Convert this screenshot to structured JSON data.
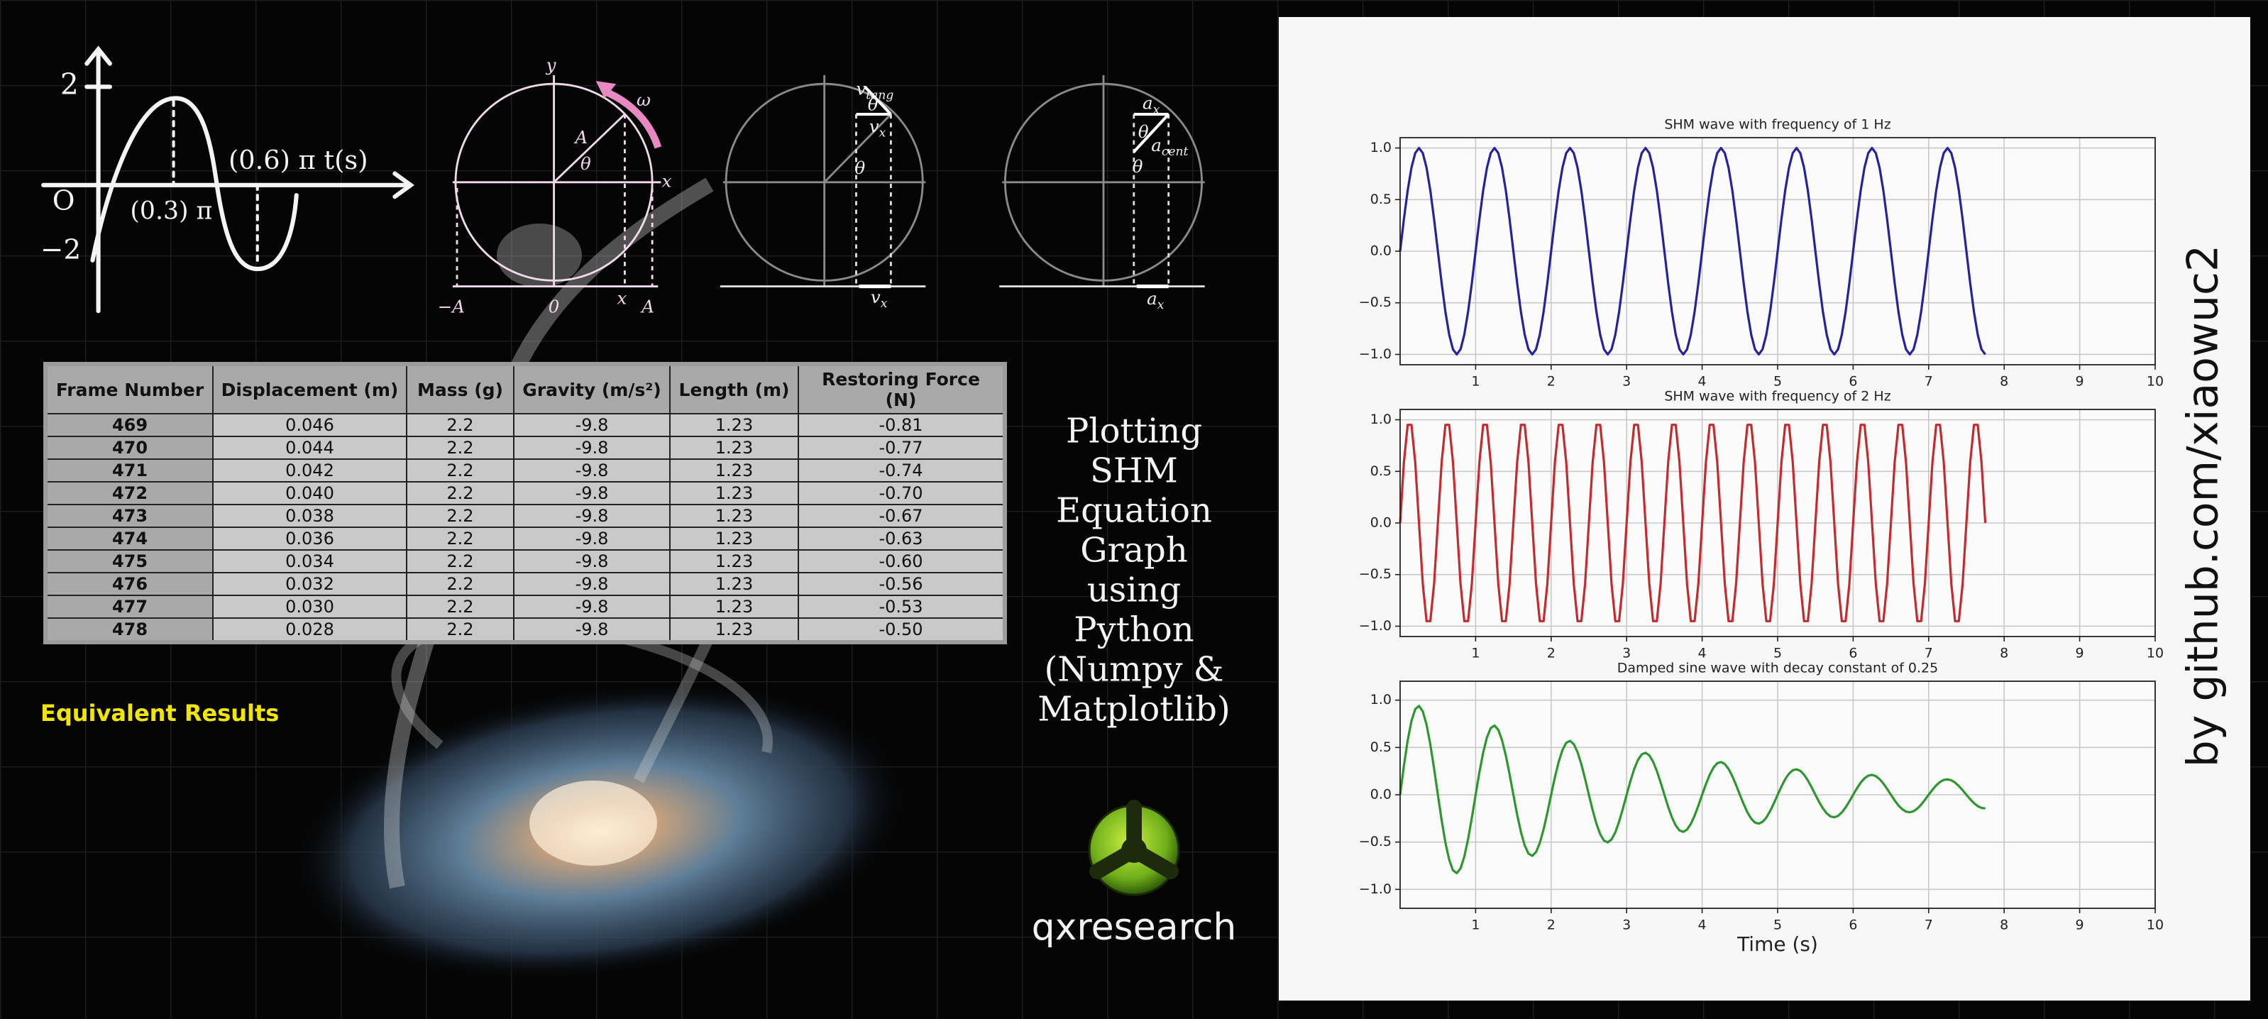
{
  "sine_sketch": {
    "labels": [
      "2",
      "O",
      "−2",
      "(0.3) π",
      "(0.6) π t(s)"
    ]
  },
  "circles": [
    {
      "labels": [
        "y",
        "x",
        "A",
        "θ",
        "ω",
        "−A",
        "0",
        "x",
        "A"
      ]
    },
    {
      "labels": [
        {
          "base": "v",
          "sub": "tang"
        },
        "θ",
        {
          "base": "v",
          "sub": "x"
        },
        "θ",
        {
          "base": "v",
          "sub": "x"
        }
      ]
    },
    {
      "labels": [
        {
          "base": "a",
          "sub": "x"
        },
        "θ",
        {
          "base": "a",
          "sub": "cent"
        },
        "θ",
        {
          "base": "a",
          "sub": "x"
        }
      ]
    }
  ],
  "table": {
    "headers": [
      "Frame Number",
      "Displacement (m)",
      "Mass (g)",
      "Gravity (m/s²)",
      "Length (m)",
      "Restoring Force (N)"
    ],
    "rows": [
      [
        "469",
        "0.046",
        "2.2",
        "-9.8",
        "1.23",
        "-0.81"
      ],
      [
        "470",
        "0.044",
        "2.2",
        "-9.8",
        "1.23",
        "-0.77"
      ],
      [
        "471",
        "0.042",
        "2.2",
        "-9.8",
        "1.23",
        "-0.74"
      ],
      [
        "472",
        "0.040",
        "2.2",
        "-9.8",
        "1.23",
        "-0.70"
      ],
      [
        "473",
        "0.038",
        "2.2",
        "-9.8",
        "1.23",
        "-0.67"
      ],
      [
        "474",
        "0.036",
        "2.2",
        "-9.8",
        "1.23",
        "-0.63"
      ],
      [
        "475",
        "0.034",
        "2.2",
        "-9.8",
        "1.23",
        "-0.60"
      ],
      [
        "476",
        "0.032",
        "2.2",
        "-9.8",
        "1.23",
        "-0.56"
      ],
      [
        "477",
        "0.030",
        "2.2",
        "-9.8",
        "1.23",
        "-0.53"
      ],
      [
        "478",
        "0.028",
        "2.2",
        "-9.8",
        "1.23",
        "-0.50"
      ]
    ]
  },
  "note": "Equivalent Results",
  "title_lines": [
    "Plotting",
    "SHM",
    "Equation",
    "Graph",
    "using",
    "Python",
    "(Numpy &",
    "Matplotlib)"
  ],
  "brand": "qxresearch",
  "credit": "by github.com/xiaowuc2",
  "chart_data": [
    {
      "type": "line",
      "title": "SHM wave with frequency of 1 Hz",
      "color": "#23239b",
      "grid": true,
      "xlim": [
        0,
        10
      ],
      "xticks": [
        1,
        2,
        3,
        4,
        5,
        6,
        7,
        8,
        9,
        10
      ],
      "ylim": [
        -1.1,
        1.1
      ],
      "yticks": [
        {
          "value": -1,
          "label": "−1.0"
        },
        {
          "value": -0.5,
          "label": "−0.5"
        },
        {
          "value": 0,
          "label": "0.0"
        },
        {
          "value": 0.5,
          "label": "0.5"
        },
        {
          "value": 1,
          "label": "1.0"
        }
      ],
      "x": [
        0,
        0.05,
        0.1,
        0.15,
        0.2,
        0.25,
        0.3,
        0.35,
        0.4,
        0.45,
        0.5,
        0.55,
        0.6,
        0.65,
        0.7,
        0.75,
        0.8,
        0.85,
        0.9,
        0.95,
        1,
        1.05,
        1.1,
        1.15,
        1.2,
        1.25,
        1.3,
        1.35,
        1.4,
        1.45,
        1.5,
        1.55,
        1.6,
        1.65,
        1.7,
        1.75,
        1.8,
        1.85,
        1.9,
        1.95,
        2,
        2.05,
        2.1,
        2.15,
        2.2,
        2.25,
        2.3,
        2.35,
        2.4,
        2.45,
        2.5,
        2.55,
        2.6,
        2.65,
        2.7,
        2.75,
        2.8,
        2.85,
        2.9,
        2.95,
        3,
        3.05,
        3.1,
        3.15,
        3.2,
        3.25,
        3.3,
        3.35,
        3.4,
        3.45,
        3.5,
        3.55,
        3.6,
        3.65,
        3.7,
        3.75,
        3.8,
        3.85,
        3.9,
        3.95,
        4,
        4.05,
        4.1,
        4.15,
        4.2,
        4.25,
        4.3,
        4.35,
        4.4,
        4.45,
        4.5,
        4.55,
        4.6,
        4.65,
        4.7,
        4.75,
        4.8,
        4.85,
        4.9,
        4.95,
        5,
        5.05,
        5.1,
        5.15,
        5.2,
        5.25,
        5.3,
        5.35,
        5.4,
        5.45,
        5.5,
        5.55,
        5.6,
        5.65,
        5.7,
        5.75,
        5.8,
        5.85,
        5.9,
        5.95,
        6,
        6.05,
        6.1,
        6.15,
        6.2,
        6.25,
        6.3,
        6.35,
        6.4,
        6.45,
        6.5,
        6.55,
        6.6,
        6.65,
        6.7,
        6.75,
        6.8,
        6.85,
        6.9,
        6.95,
        7,
        7.05,
        7.1,
        7.15,
        7.2,
        7.25,
        7.3,
        7.35,
        7.4,
        7.45,
        7.5,
        7.55,
        7.6,
        7.65,
        7.7,
        7.75
      ],
      "values": [
        0,
        0.309,
        0.588,
        0.809,
        0.951,
        1,
        0.951,
        0.809,
        0.588,
        0.309,
        0,
        -0.309,
        -0.588,
        -0.809,
        -0.951,
        -1,
        -0.951,
        -0.809,
        -0.588,
        -0.309,
        0,
        0.309,
        0.588,
        0.809,
        0.951,
        1,
        0.951,
        0.809,
        0.588,
        0.309,
        0,
        -0.309,
        -0.588,
        -0.809,
        -0.951,
        -1,
        -0.951,
        -0.809,
        -0.588,
        -0.309,
        0,
        0.309,
        0.588,
        0.809,
        0.951,
        1,
        0.951,
        0.809,
        0.588,
        0.309,
        0,
        -0.309,
        -0.588,
        -0.809,
        -0.951,
        -1,
        -0.951,
        -0.809,
        -0.588,
        -0.309,
        0,
        0.309,
        0.588,
        0.809,
        0.951,
        1,
        0.951,
        0.809,
        0.588,
        0.309,
        0,
        -0.309,
        -0.588,
        -0.809,
        -0.951,
        -1,
        -0.951,
        -0.809,
        -0.588,
        -0.309,
        0,
        0.309,
        0.588,
        0.809,
        0.951,
        1,
        0.951,
        0.809,
        0.588,
        0.309,
        0,
        -0.309,
        -0.588,
        -0.809,
        -0.951,
        -1,
        -0.951,
        -0.809,
        -0.588,
        -0.309,
        0,
        0.309,
        0.588,
        0.809,
        0.951,
        1,
        0.951,
        0.809,
        0.588,
        0.309,
        0,
        -0.309,
        -0.588,
        -0.809,
        -0.951,
        -1,
        -0.951,
        -0.809,
        -0.588,
        -0.309,
        0,
        0.309,
        0.588,
        0.809,
        0.951,
        1,
        0.951,
        0.809,
        0.588,
        0.309,
        0,
        -0.309,
        -0.588,
        -0.809,
        -0.951,
        -1,
        -0.951,
        -0.809,
        -0.588,
        -0.309,
        0,
        0.309,
        0.588,
        0.809,
        0.951,
        1,
        0.951,
        0.809,
        0.588,
        0.309,
        0,
        -0.309,
        -0.588,
        -0.809,
        -0.951,
        -1
      ]
    },
    {
      "type": "line",
      "title": "SHM wave with frequency of 2 Hz",
      "color": "#c42a2e",
      "grid": true,
      "xlim": [
        0,
        10
      ],
      "xticks": [
        1,
        2,
        3,
        4,
        5,
        6,
        7,
        8,
        9,
        10
      ],
      "ylim": [
        -1.1,
        1.1
      ],
      "yticks": [
        {
          "value": -1,
          "label": "−1.0"
        },
        {
          "value": -0.5,
          "label": "−0.5"
        },
        {
          "value": 0,
          "label": "0.0"
        },
        {
          "value": 0.5,
          "label": "0.5"
        },
        {
          "value": 1,
          "label": "1.0"
        }
      ],
      "x": [
        0,
        0.05,
        0.1,
        0.15,
        0.2,
        0.25,
        0.3,
        0.35,
        0.4,
        0.45,
        0.5,
        0.55,
        0.6,
        0.65,
        0.7,
        0.75,
        0.8,
        0.85,
        0.9,
        0.95,
        1,
        1.05,
        1.1,
        1.15,
        1.2,
        1.25,
        1.3,
        1.35,
        1.4,
        1.45,
        1.5,
        1.55,
        1.6,
        1.65,
        1.7,
        1.75,
        1.8,
        1.85,
        1.9,
        1.95,
        2,
        2.05,
        2.1,
        2.15,
        2.2,
        2.25,
        2.3,
        2.35,
        2.4,
        2.45,
        2.5,
        2.55,
        2.6,
        2.65,
        2.7,
        2.75,
        2.8,
        2.85,
        2.9,
        2.95,
        3,
        3.05,
        3.1,
        3.15,
        3.2,
        3.25,
        3.3,
        3.35,
        3.4,
        3.45,
        3.5,
        3.55,
        3.6,
        3.65,
        3.7,
        3.75,
        3.8,
        3.85,
        3.9,
        3.95,
        4,
        4.05,
        4.1,
        4.15,
        4.2,
        4.25,
        4.3,
        4.35,
        4.4,
        4.45,
        4.5,
        4.55,
        4.6,
        4.65,
        4.7,
        4.75,
        4.8,
        4.85,
        4.9,
        4.95,
        5,
        5.05,
        5.1,
        5.15,
        5.2,
        5.25,
        5.3,
        5.35,
        5.4,
        5.45,
        5.5,
        5.55,
        5.6,
        5.65,
        5.7,
        5.75,
        5.8,
        5.85,
        5.9,
        5.95,
        6,
        6.05,
        6.1,
        6.15,
        6.2,
        6.25,
        6.3,
        6.35,
        6.4,
        6.45,
        6.5,
        6.55,
        6.6,
        6.65,
        6.7,
        6.75,
        6.8,
        6.85,
        6.9,
        6.95,
        7,
        7.05,
        7.1,
        7.15,
        7.2,
        7.25,
        7.3,
        7.35,
        7.4,
        7.45,
        7.5,
        7.55,
        7.6,
        7.65,
        7.7,
        7.75
      ],
      "values": [
        0,
        0.588,
        0.951,
        0.951,
        0.588,
        0,
        -0.588,
        -0.951,
        -0.951,
        -0.588,
        0,
        0.588,
        0.951,
        0.951,
        0.588,
        0,
        -0.588,
        -0.951,
        -0.951,
        -0.588,
        0,
        0.588,
        0.951,
        0.951,
        0.588,
        0,
        -0.588,
        -0.951,
        -0.951,
        -0.588,
        0,
        0.588,
        0.951,
        0.951,
        0.588,
        0,
        -0.588,
        -0.951,
        -0.951,
        -0.588,
        0,
        0.588,
        0.951,
        0.951,
        0.588,
        0,
        -0.588,
        -0.951,
        -0.951,
        -0.588,
        0,
        0.588,
        0.951,
        0.951,
        0.588,
        0,
        -0.588,
        -0.951,
        -0.951,
        -0.588,
        0,
        0.588,
        0.951,
        0.951,
        0.588,
        0,
        -0.588,
        -0.951,
        -0.951,
        -0.588,
        0,
        0.588,
        0.951,
        0.951,
        0.588,
        0,
        -0.588,
        -0.951,
        -0.951,
        -0.588,
        0,
        0.588,
        0.951,
        0.951,
        0.588,
        0,
        -0.588,
        -0.951,
        -0.951,
        -0.588,
        0,
        0.588,
        0.951,
        0.951,
        0.588,
        0,
        -0.588,
        -0.951,
        -0.951,
        -0.588,
        0,
        0.588,
        0.951,
        0.951,
        0.588,
        0,
        -0.588,
        -0.951,
        -0.951,
        -0.588,
        0,
        0.588,
        0.951,
        0.951,
        0.588,
        0,
        -0.588,
        -0.951,
        -0.951,
        -0.588,
        0,
        0.588,
        0.951,
        0.951,
        0.588,
        0,
        -0.588,
        -0.951,
        -0.951,
        -0.588,
        0,
        0.588,
        0.951,
        0.951,
        0.588,
        0,
        -0.588,
        -0.951,
        -0.951,
        -0.588,
        0,
        0.588,
        0.951,
        0.951,
        0.588,
        0,
        -0.588,
        -0.951,
        -0.951,
        -0.588,
        0,
        0.588,
        0.951,
        0.951,
        0.588,
        0
      ]
    },
    {
      "type": "line",
      "title": "Damped sine wave with decay constant of 0.25",
      "color": "#2e962e",
      "grid": true,
      "xlabel": "Time (s)",
      "xlim": [
        0,
        10
      ],
      "xticks": [
        1,
        2,
        3,
        4,
        5,
        6,
        7,
        8,
        9,
        10
      ],
      "ylim": [
        -1.2,
        1.2
      ],
      "yticks": [
        {
          "value": -1,
          "label": "−1.0"
        },
        {
          "value": -0.5,
          "label": "−0.5"
        },
        {
          "value": 0,
          "label": "0.0"
        },
        {
          "value": 0.5,
          "label": "0.5"
        },
        {
          "value": 1,
          "label": "1.0"
        }
      ],
      "x": [
        0,
        0.05,
        0.1,
        0.15,
        0.2,
        0.25,
        0.3,
        0.35,
        0.4,
        0.45,
        0.5,
        0.55,
        0.6,
        0.65,
        0.7,
        0.75,
        0.8,
        0.85,
        0.9,
        0.95,
        1,
        1.05,
        1.1,
        1.15,
        1.2,
        1.25,
        1.3,
        1.35,
        1.4,
        1.45,
        1.5,
        1.55,
        1.6,
        1.65,
        1.7,
        1.75,
        1.8,
        1.85,
        1.9,
        1.95,
        2,
        2.05,
        2.1,
        2.15,
        2.2,
        2.25,
        2.3,
        2.35,
        2.4,
        2.45,
        2.5,
        2.55,
        2.6,
        2.65,
        2.7,
        2.75,
        2.8,
        2.85,
        2.9,
        2.95,
        3,
        3.05,
        3.1,
        3.15,
        3.2,
        3.25,
        3.3,
        3.35,
        3.4,
        3.45,
        3.5,
        3.55,
        3.6,
        3.65,
        3.7,
        3.75,
        3.8,
        3.85,
        3.9,
        3.95,
        4,
        4.05,
        4.1,
        4.15,
        4.2,
        4.25,
        4.3,
        4.35,
        4.4,
        4.45,
        4.5,
        4.55,
        4.6,
        4.65,
        4.7,
        4.75,
        4.8,
        4.85,
        4.9,
        4.95,
        5,
        5.05,
        5.1,
        5.15,
        5.2,
        5.25,
        5.3,
        5.35,
        5.4,
        5.45,
        5.5,
        5.55,
        5.6,
        5.65,
        5.7,
        5.75,
        5.8,
        5.85,
        5.9,
        5.95,
        6,
        6.05,
        6.1,
        6.15,
        6.2,
        6.25,
        6.3,
        6.35,
        6.4,
        6.45,
        6.5,
        6.55,
        6.6,
        6.65,
        6.7,
        6.75,
        6.8,
        6.85,
        6.9,
        6.95,
        7,
        7.05,
        7.1,
        7.15,
        7.2,
        7.25,
        7.3,
        7.35,
        7.4,
        7.45,
        7.5,
        7.55,
        7.6,
        7.65,
        7.7,
        7.75
      ],
      "values": [
        0,
        0.305,
        0.573,
        0.779,
        0.905,
        0.939,
        0.882,
        0.741,
        0.532,
        0.276,
        0,
        -0.269,
        -0.506,
        -0.688,
        -0.798,
        -0.829,
        -0.779,
        -0.654,
        -0.469,
        -0.244,
        0,
        0.238,
        0.446,
        0.607,
        0.705,
        0.732,
        0.687,
        0.577,
        0.414,
        0.215,
        0,
        -0.21,
        -0.394,
        -0.536,
        -0.622,
        -0.646,
        -0.606,
        -0.509,
        -0.366,
        -0.19,
        0,
        0.185,
        0.348,
        0.473,
        0.549,
        0.57,
        0.535,
        0.45,
        0.323,
        0.167,
        0,
        -0.163,
        -0.307,
        -0.417,
        -0.484,
        -0.503,
        -0.472,
        -0.397,
        -0.285,
        -0.148,
        0,
        0.144,
        0.271,
        0.368,
        0.427,
        0.444,
        0.417,
        0.35,
        0.251,
        0.13,
        0,
        -0.127,
        -0.239,
        -0.325,
        -0.377,
        -0.392,
        -0.368,
        -0.309,
        -0.222,
        -0.115,
        0,
        0.112,
        0.211,
        0.287,
        0.333,
        0.346,
        0.325,
        0.273,
        0.196,
        0.102,
        0,
        -0.099,
        -0.186,
        -0.253,
        -0.294,
        -0.305,
        -0.286,
        -0.241,
        -0.173,
        -0.09,
        0,
        0.087,
        0.164,
        0.223,
        0.259,
        0.269,
        0.253,
        0.212,
        0.152,
        0.079,
        0,
        -0.077,
        -0.145,
        -0.197,
        -0.229,
        -0.238,
        -0.223,
        -0.187,
        -0.134,
        -0.07,
        0,
        0.068,
        0.128,
        0.174,
        0.202,
        0.21,
        0.197,
        0.165,
        0.119,
        0.062,
        0,
        -0.06,
        -0.113,
        -0.153,
        -0.178,
        -0.185,
        -0.174,
        -0.146,
        -0.105,
        -0.054,
        0,
        0.053,
        0.1,
        0.135,
        0.157,
        0.163,
        0.153,
        0.129,
        0.092,
        0.048,
        0,
        -0.047,
        -0.088,
        -0.12,
        -0.139,
        -0.144
      ]
    }
  ]
}
